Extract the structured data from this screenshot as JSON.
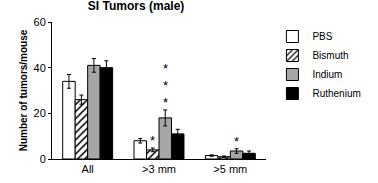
{
  "chart_data": {
    "type": "bar",
    "title": "SI Tumors (male)",
    "y_label": "Number of tumors/mouse",
    "categories": [
      "All",
      ">3 mm",
      ">5 mm"
    ],
    "series": [
      {
        "name": "PBS",
        "color": "#ffffff",
        "values": [
          34,
          8,
          1.5
        ],
        "errors": [
          3,
          1,
          0.3
        ]
      },
      {
        "name": "Bismuth",
        "color": "#ffffff",
        "marker": "hatched",
        "values": [
          26,
          4,
          1
        ],
        "errors": [
          2,
          0.8,
          0.3
        ]
      },
      {
        "name": "Indium",
        "color": "#a6a6a6",
        "values": [
          41,
          18,
          3.5
        ],
        "errors": [
          3,
          3.5,
          1
        ]
      },
      {
        "name": "Ruthenium",
        "color": "#000000",
        "values": [
          40,
          11,
          2.5
        ],
        "errors": [
          3,
          2,
          1
        ]
      }
    ],
    "annotations": [
      {
        "text": "*",
        "category": ">3 mm",
        "series": "Bismuth"
      },
      {
        "text": "***",
        "category": ">3 mm",
        "series": "Indium"
      },
      {
        "text": "*",
        "category": ">5 mm",
        "series": "Indium"
      }
    ],
    "ylim": [
      0,
      60
    ],
    "yticks": [
      0,
      20,
      40,
      60
    ],
    "grid": false,
    "legend": "right"
  }
}
